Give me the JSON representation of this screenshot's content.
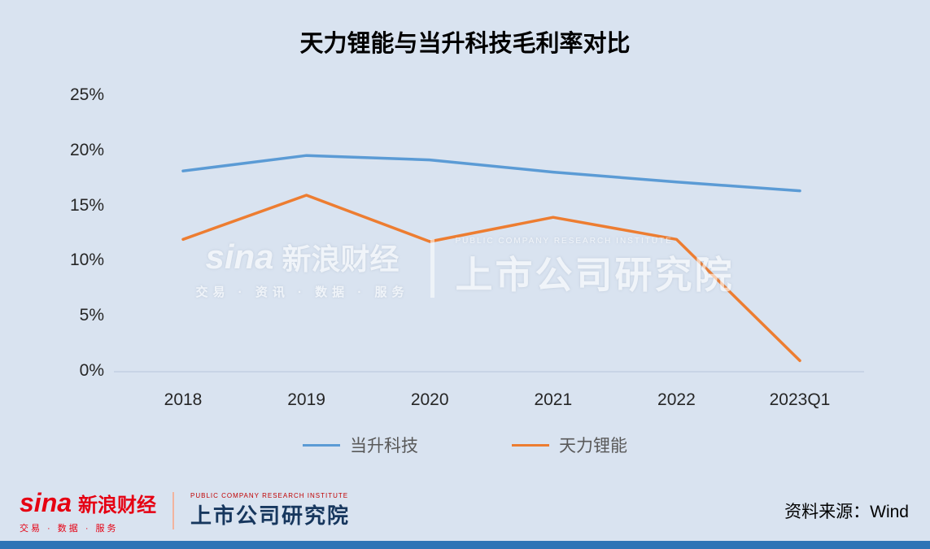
{
  "title": "天力锂能与当升科技毛利率对比",
  "chart_data": {
    "type": "line",
    "categories": [
      "2018",
      "2019",
      "2020",
      "2021",
      "2022",
      "2023Q1"
    ],
    "series": [
      {
        "name": "当升科技",
        "color": "#5b9bd5",
        "values": [
          18.2,
          19.6,
          19.2,
          18.1,
          17.2,
          16.4
        ]
      },
      {
        "name": "天力锂能",
        "color": "#ed7d31",
        "values": [
          12.0,
          16.0,
          11.8,
          14.0,
          12.0,
          1.0
        ]
      }
    ],
    "title": "天力锂能与当升科技毛利率对比",
    "xlabel": "",
    "ylabel": "",
    "ylim": [
      0,
      25
    ],
    "ytick_step": 5,
    "ytick_labels": [
      "0%",
      "5%",
      "10%",
      "15%",
      "20%",
      "25%"
    ],
    "grid": false,
    "legend_position": "bottom"
  },
  "watermark": {
    "sina": "sina",
    "brand": "新浪财经",
    "tagline": "交易 · 资讯 · 数据 · 服务",
    "institute": "上市公司研究院",
    "institute_en": "PUBLIC COMPANY RESEARCH INSTITUTE"
  },
  "footer": {
    "sina": "sina",
    "brand": "新浪财经",
    "tagline": "交易 · 数据 · 服务",
    "institute": "上市公司研究院",
    "institute_en": "PUBLIC COMPANY RESEARCH INSTITUTE",
    "source": "资料来源：Wind"
  },
  "colors": {
    "background": "#d9e3f0",
    "bottom_bar": "#2e74b6",
    "series_blue": "#5b9bd5",
    "series_orange": "#ed7d31"
  }
}
